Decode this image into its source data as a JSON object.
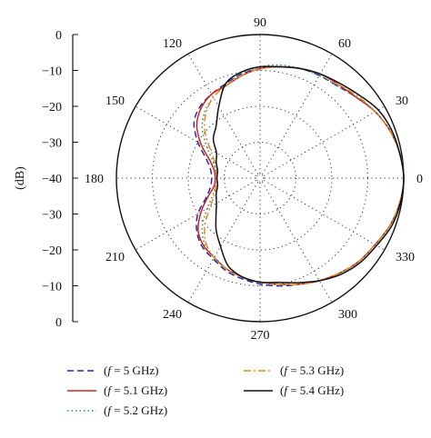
{
  "chart_data": {
    "type": "polar-line",
    "ylabel": "(dB)",
    "radial_range": [
      -40,
      0
    ],
    "radial_ticks": [
      "0",
      "−10",
      "−20",
      "−30",
      "−40",
      "−30",
      "−20",
      "−10",
      "0"
    ],
    "angle_labels": [
      "0",
      "30",
      "60",
      "90",
      "120",
      "150",
      "180",
      "210",
      "240",
      "270",
      "300",
      "330"
    ],
    "grid": true,
    "legend_placement": "bottom",
    "series": [
      {
        "name": "(f = 5 GHz)",
        "color": "#1f2fa8",
        "dash": "dashed",
        "angles": [
          0,
          10,
          20,
          30,
          40,
          50,
          60,
          70,
          80,
          90,
          100,
          110,
          120,
          130,
          140,
          150,
          160,
          170,
          180,
          190,
          200,
          210,
          220,
          230,
          240,
          250,
          260,
          270,
          280,
          290,
          300,
          310,
          320,
          330,
          340,
          350
        ],
        "values": [
          0,
          -0.5,
          -1.5,
          -3,
          -5,
          -6.5,
          -7,
          -7.5,
          -8.5,
          -9.5,
          -10.5,
          -12,
          -13,
          -14,
          -16,
          -20,
          -24,
          -26,
          -26.5,
          -26,
          -24,
          -20,
          -17,
          -15,
          -14,
          -12.5,
          -11.5,
          -10.5,
          -9.5,
          -8.5,
          -7,
          -5.5,
          -4,
          -3,
          -1.5,
          -0.5
        ]
      },
      {
        "name": "(f = 5.1 GHz)",
        "color": "#d42020",
        "dash": "solid",
        "angles": [
          0,
          10,
          20,
          30,
          40,
          50,
          60,
          70,
          80,
          90,
          100,
          110,
          120,
          130,
          140,
          150,
          160,
          170,
          180,
          190,
          200,
          210,
          220,
          230,
          240,
          250,
          260,
          270,
          280,
          290,
          300,
          310,
          320,
          330,
          340,
          350
        ],
        "values": [
          0,
          -0.5,
          -1.5,
          -3,
          -5,
          -6,
          -6.5,
          -7.5,
          -8.5,
          -9.5,
          -11,
          -12.5,
          -13,
          -14.5,
          -17,
          -21,
          -25,
          -27,
          -27.5,
          -27,
          -24.5,
          -21,
          -17.5,
          -15.5,
          -14.5,
          -13,
          -12,
          -11,
          -10,
          -8.5,
          -7,
          -5.5,
          -4,
          -3,
          -1.5,
          -0.5
        ]
      },
      {
        "name": "(f = 5.2 GHz)",
        "color": "#2e8b57",
        "dash": "dotted",
        "angles": [
          0,
          10,
          20,
          30,
          40,
          50,
          60,
          70,
          80,
          90,
          100,
          110,
          120,
          130,
          140,
          150,
          160,
          170,
          180,
          190,
          200,
          210,
          220,
          230,
          240,
          250,
          260,
          270,
          280,
          290,
          300,
          310,
          320,
          330,
          340,
          350
        ],
        "values": [
          0,
          -0.5,
          -1.5,
          -3,
          -5,
          -6.5,
          -7,
          -7.5,
          -8,
          -9,
          -10.5,
          -12.5,
          -14,
          -16,
          -19,
          -23,
          -26,
          -27.5,
          -28,
          -27.5,
          -26,
          -23,
          -19,
          -16,
          -14.5,
          -13,
          -12,
          -11,
          -10,
          -8.5,
          -7,
          -5.5,
          -4,
          -3,
          -1.5,
          -0.5
        ]
      },
      {
        "name": "(f = 5.3 GHz)",
        "color": "#e0882a",
        "dash": "dashdot",
        "angles": [
          0,
          10,
          20,
          30,
          40,
          50,
          60,
          70,
          80,
          90,
          100,
          110,
          120,
          130,
          140,
          150,
          160,
          170,
          180,
          190,
          200,
          210,
          220,
          230,
          240,
          250,
          260,
          270,
          280,
          290,
          300,
          310,
          320,
          330,
          340,
          350
        ],
        "values": [
          0,
          -0.5,
          -1.5,
          -3,
          -4.5,
          -6,
          -6.5,
          -7.5,
          -8.5,
          -9.5,
          -11,
          -12.5,
          -14,
          -16.5,
          -20,
          -24,
          -26.5,
          -27.5,
          -28,
          -27.5,
          -26.5,
          -24,
          -20,
          -16.5,
          -14.5,
          -13,
          -12,
          -11,
          -10,
          -8.5,
          -7,
          -5.5,
          -4,
          -3,
          -1.5,
          -0.5
        ]
      },
      {
        "name": "(f = 5.4 GHz)",
        "color": "#111111",
        "dash": "solid",
        "angles": [
          0,
          10,
          20,
          30,
          40,
          50,
          60,
          70,
          80,
          90,
          100,
          110,
          120,
          130,
          140,
          150,
          160,
          170,
          180,
          190,
          200,
          210,
          220,
          230,
          240,
          250,
          260,
          270,
          280,
          290,
          300,
          310,
          320,
          330,
          340,
          350
        ],
        "values": [
          0,
          -0.5,
          -1,
          -2,
          -4,
          -5.5,
          -6.5,
          -7.5,
          -8.5,
          -9,
          -10,
          -12,
          -17,
          -21,
          -23,
          -26,
          -27,
          -28,
          -28,
          -28,
          -27,
          -26,
          -24,
          -21,
          -18,
          -14,
          -12,
          -11,
          -10.5,
          -9,
          -7,
          -5,
          -3.5,
          -2.5,
          -1,
          -0.3
        ]
      }
    ]
  }
}
